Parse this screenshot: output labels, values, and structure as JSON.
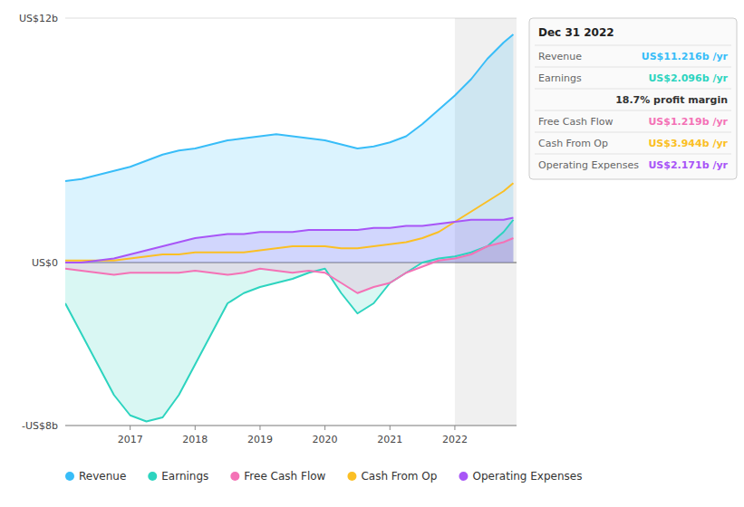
{
  "chart_data": {
    "type": "line",
    "x": [
      2016.0,
      2016.25,
      2016.5,
      2016.75,
      2017.0,
      2017.25,
      2017.5,
      2017.75,
      2018.0,
      2018.25,
      2018.5,
      2018.75,
      2019.0,
      2019.25,
      2019.5,
      2019.75,
      2020.0,
      2020.25,
      2020.5,
      2020.75,
      2021.0,
      2021.25,
      2021.5,
      2021.75,
      2022.0,
      2022.25,
      2022.5,
      2022.75,
      2022.9
    ],
    "xlim": [
      2016.0,
      2022.95
    ],
    "xticks": [
      2017,
      2018,
      2019,
      2020,
      2021,
      2022
    ],
    "ylim": [
      -8,
      12
    ],
    "yticks": [
      {
        "value": -8,
        "label": "-US$8b"
      },
      {
        "value": 0,
        "label": "US$0"
      },
      {
        "value": 12,
        "label": "US$12b"
      }
    ],
    "grid": true,
    "legend": "bottom",
    "series": [
      {
        "name": "Revenue",
        "color": "#38bdf8",
        "type": "area",
        "values": [
          4.0,
          4.1,
          4.3,
          4.5,
          4.7,
          5.0,
          5.3,
          5.5,
          5.6,
          5.8,
          6.0,
          6.1,
          6.2,
          6.3,
          6.2,
          6.1,
          6.0,
          5.8,
          5.6,
          5.7,
          5.9,
          6.2,
          6.8,
          7.5,
          8.2,
          9.0,
          10.0,
          10.8,
          11.2
        ]
      },
      {
        "name": "Earnings",
        "color": "#2dd4bf",
        "type": "area",
        "values": [
          -2.0,
          -3.5,
          -5.0,
          -6.5,
          -7.5,
          -7.8,
          -7.6,
          -6.5,
          -5.0,
          -3.5,
          -2.0,
          -1.5,
          -1.2,
          -1.0,
          -0.8,
          -0.5,
          -0.3,
          -1.5,
          -2.5,
          -2.0,
          -1.0,
          -0.5,
          0.0,
          0.2,
          0.3,
          0.5,
          0.8,
          1.5,
          2.1
        ]
      },
      {
        "name": "Free Cash Flow",
        "color": "#f472b6",
        "type": "area",
        "values": [
          -0.3,
          -0.4,
          -0.5,
          -0.6,
          -0.5,
          -0.5,
          -0.5,
          -0.5,
          -0.4,
          -0.5,
          -0.6,
          -0.5,
          -0.3,
          -0.4,
          -0.5,
          -0.4,
          -0.5,
          -1.0,
          -1.5,
          -1.2,
          -1.0,
          -0.5,
          -0.2,
          0.1,
          0.2,
          0.4,
          0.8,
          1.0,
          1.2
        ]
      },
      {
        "name": "Cash From Op",
        "color": "#fbbf24",
        "type": "line",
        "values": [
          0.1,
          0.1,
          0.1,
          0.1,
          0.2,
          0.3,
          0.4,
          0.4,
          0.5,
          0.5,
          0.5,
          0.5,
          0.6,
          0.7,
          0.8,
          0.8,
          0.8,
          0.7,
          0.7,
          0.8,
          0.9,
          1.0,
          1.2,
          1.5,
          2.0,
          2.5,
          3.0,
          3.5,
          3.9
        ]
      },
      {
        "name": "Operating Expenses",
        "color": "#a855f7",
        "type": "area",
        "values": [
          0.0,
          0.0,
          0.1,
          0.2,
          0.4,
          0.6,
          0.8,
          1.0,
          1.2,
          1.3,
          1.4,
          1.4,
          1.5,
          1.5,
          1.5,
          1.6,
          1.6,
          1.6,
          1.6,
          1.7,
          1.7,
          1.8,
          1.8,
          1.9,
          2.0,
          2.1,
          2.1,
          2.1,
          2.2
        ]
      }
    ],
    "annotations": [
      {
        "type": "span",
        "x": 2022.0
      },
      {
        "type": "tooltip",
        "title": "Dec 31 2022",
        "rows": [
          {
            "label": "Revenue",
            "text": "US$11.216b /yr",
            "color": "#38bdf8"
          },
          {
            "label": "Earnings",
            "text": "US$2.096b /yr",
            "color": "#2dd4bf"
          },
          {
            "text": "18.7% profit margin",
            "color": "#333333"
          },
          {
            "label": "Free Cash Flow",
            "text": "US$1.219b /yr",
            "color": "#f472b6"
          },
          {
            "label": "Cash From Op",
            "text": "US$3.944b /yr",
            "color": "#fbbf24"
          },
          {
            "label": "Operating Expenses",
            "text": "US$2.171b /yr",
            "color": "#a855f7"
          }
        ]
      }
    ]
  }
}
